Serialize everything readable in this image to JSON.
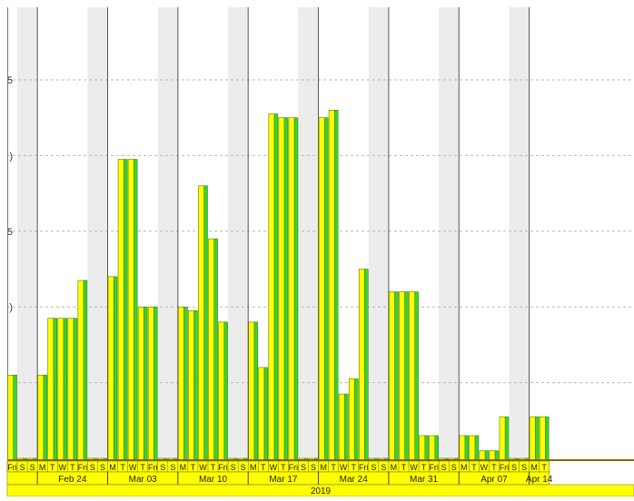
{
  "chart_data": {
    "type": "bar",
    "y_tick_labels": [
      ")",
      "5",
      ")",
      "5",
      ")",
      "5"
    ],
    "grid": true,
    "colors": {
      "bar_fill": "#ffff00",
      "bar_side": "#33d633",
      "bar_edge": "#5a7a00",
      "weekend_band": "#ececec",
      "grid": "#b8b8b8",
      "axis_band": "#ffff00",
      "week_divider": "#555555",
      "baseline": "#8a6a00"
    },
    "days": [
      {
        "d": "Fri",
        "v": 22
      },
      {
        "d": "S",
        "v": 0
      },
      {
        "d": "S",
        "v": 0
      },
      {
        "d": "M",
        "v": 22
      },
      {
        "d": "T",
        "v": 37
      },
      {
        "d": "W",
        "v": 37
      },
      {
        "d": "T",
        "v": 37
      },
      {
        "d": "Fri",
        "v": 47
      },
      {
        "d": "S",
        "v": 0
      },
      {
        "d": "S",
        "v": 0
      },
      {
        "d": "M",
        "v": 48
      },
      {
        "d": "T",
        "v": 79
      },
      {
        "d": "W",
        "v": 79
      },
      {
        "d": "T",
        "v": 40
      },
      {
        "d": "Fri",
        "v": 40
      },
      {
        "d": "S",
        "v": 0
      },
      {
        "d": "S",
        "v": 0
      },
      {
        "d": "M",
        "v": 40
      },
      {
        "d": "T",
        "v": 39
      },
      {
        "d": "W",
        "v": 72
      },
      {
        "d": "T",
        "v": 58
      },
      {
        "d": "Fri",
        "v": 36
      },
      {
        "d": "S",
        "v": 0
      },
      {
        "d": "S",
        "v": 0
      },
      {
        "d": "M",
        "v": 36
      },
      {
        "d": "T",
        "v": 24
      },
      {
        "d": "W",
        "v": 91
      },
      {
        "d": "T",
        "v": 90
      },
      {
        "d": "Fri",
        "v": 90
      },
      {
        "d": "S",
        "v": 0
      },
      {
        "d": "S",
        "v": 0
      },
      {
        "d": "M",
        "v": 90
      },
      {
        "d": "T",
        "v": 92
      },
      {
        "d": "W",
        "v": 17
      },
      {
        "d": "T",
        "v": 21
      },
      {
        "d": "Fri",
        "v": 50
      },
      {
        "d": "S",
        "v": 0
      },
      {
        "d": "S",
        "v": 0
      },
      {
        "d": "M",
        "v": 44
      },
      {
        "d": "T",
        "v": 44
      },
      {
        "d": "W",
        "v": 44
      },
      {
        "d": "T",
        "v": 6
      },
      {
        "d": "Fri",
        "v": 6
      },
      {
        "d": "S",
        "v": 0
      },
      {
        "d": "S",
        "v": 0
      },
      {
        "d": "M",
        "v": 6
      },
      {
        "d": "T",
        "v": 6
      },
      {
        "d": "W",
        "v": 2
      },
      {
        "d": "T",
        "v": 2
      },
      {
        "d": "Fri",
        "v": 11
      },
      {
        "d": "S",
        "v": 0
      },
      {
        "d": "S",
        "v": 0
      },
      {
        "d": "M",
        "v": 11
      },
      {
        "d": "T",
        "v": 11
      }
    ],
    "weeks": [
      {
        "label": "",
        "start": 0,
        "count": 3
      },
      {
        "label": "Feb 24",
        "start": 3,
        "count": 7
      },
      {
        "label": "Mar 03",
        "start": 10,
        "count": 7
      },
      {
        "label": "Mar 10",
        "start": 17,
        "count": 7
      },
      {
        "label": "Mar 17",
        "start": 24,
        "count": 7
      },
      {
        "label": "Mar 24",
        "start": 31,
        "count": 7
      },
      {
        "label": "Mar 31",
        "start": 38,
        "count": 7
      },
      {
        "label": "Apr 07",
        "start": 45,
        "count": 7
      },
      {
        "label": "Apr 14",
        "start": 52,
        "count": 2
      }
    ],
    "year_label": "2019"
  }
}
